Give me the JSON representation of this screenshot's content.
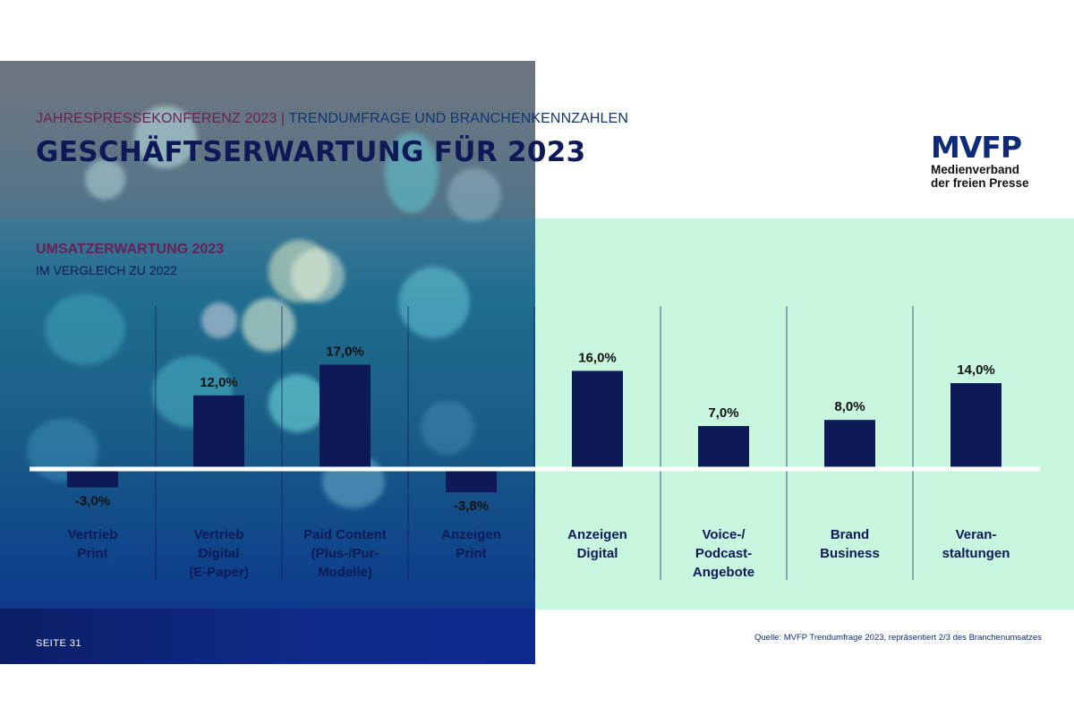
{
  "header": {
    "kicker_part1": "JAHRESPRESSEKONFERENZ 2023",
    "kicker_separator": "|",
    "kicker_part2": "TRENDUMFRAGE UND BRANCHENKENNZAHLEN",
    "title": "GESCHÄFTSERWARTUNG FÜR 2023"
  },
  "logo": {
    "mark": "MVFP",
    "line1": "Medienverband",
    "line2": "der freien Presse"
  },
  "footer": {
    "page": "SEITE 31",
    "source": "Quelle: MVFP Trendumfrage 2023, repräsentiert 2/3 des Branchenumsatzes"
  },
  "colors": {
    "bar": "#0e1a57",
    "title": "#0e1a57",
    "accent_purple": "#6a1f57",
    "green_panel": "#c8f5dd",
    "baseline": "#ffffff"
  },
  "chart_data": {
    "type": "bar",
    "title": "UMSATZERWARTUNG 2023",
    "subtitle": "IM VERGLEICH ZU 2022",
    "unit": "%",
    "categories": [
      [
        "Vertrieb",
        "Print"
      ],
      [
        "Vertrieb",
        "Digital",
        "(E-Paper)"
      ],
      [
        "Paid Content",
        "(Plus-/Pur-",
        "Modelle)"
      ],
      [
        "Anzeigen",
        "Print"
      ],
      [
        "Anzeigen",
        "Digital"
      ],
      [
        "Voice-/",
        "Podcast-",
        "Angebote"
      ],
      [
        "Brand",
        "Business"
      ],
      [
        "Veran-",
        "staltungen"
      ]
    ],
    "values": [
      -3.0,
      12.0,
      17.0,
      -3.8,
      16.0,
      7.0,
      8.0,
      14.0
    ],
    "value_labels": [
      "-3,0%",
      "12,0%",
      "17,0%",
      "-3,8%",
      "16,0%",
      "7,0%",
      "8,0%",
      "14,0%"
    ],
    "ylim": [
      -5,
      20
    ],
    "grid": false,
    "legend": "none"
  }
}
